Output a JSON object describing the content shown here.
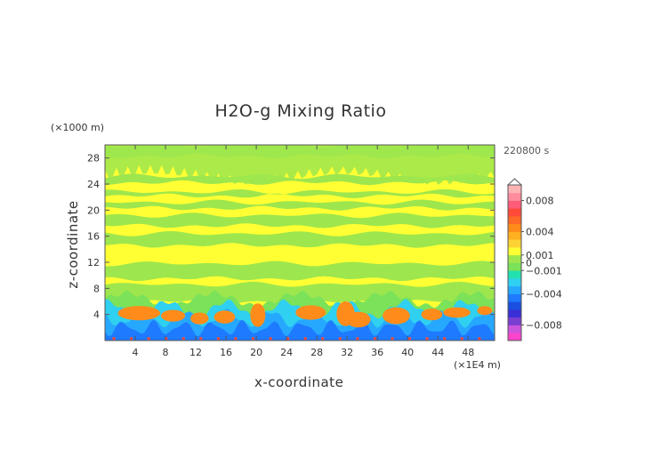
{
  "chart_data": {
    "type": "heatmap",
    "title": "H2O-g Mixing Ratio",
    "xlabel": "x-coordinate",
    "ylabel": "z-coordinate",
    "x_unit": "(×1E4 m)",
    "y_unit": "(×1000 m)",
    "time_label": "220800 s",
    "xlim": [
      0,
      51.5
    ],
    "ylim": [
      0,
      30
    ],
    "x_ticks": [
      "4",
      "8",
      "12",
      "16",
      "20",
      "24",
      "28",
      "32",
      "36",
      "40",
      "44",
      "48"
    ],
    "y_ticks": [
      "4",
      "8",
      "12",
      "16",
      "20",
      "24",
      "28"
    ],
    "x_tick_values": [
      4,
      8,
      12,
      16,
      20,
      24,
      28,
      32,
      36,
      40,
      44,
      48
    ],
    "y_tick_values": [
      4,
      8,
      12,
      16,
      20,
      24,
      28
    ],
    "colorbar": {
      "min": -0.01,
      "max": 0.01,
      "labels": [
        "0.008",
        "0.004",
        "0.001",
        "0",
        "−0.001",
        "−0.004",
        "−0.008"
      ],
      "label_values": [
        0.008,
        0.004,
        0.001,
        0,
        -0.001,
        -0.004,
        -0.008
      ],
      "colors": [
        "#ff44cc",
        "#cc55dd",
        "#7a3fd0",
        "#3a2fd6",
        "#1a4fe0",
        "#1e7aff",
        "#26a8ff",
        "#2fd0f0",
        "#22e0b0",
        "#7be25a",
        "#9ee64d",
        "#ffff33",
        "#ffd233",
        "#ffb020",
        "#ff8c1a",
        "#ff6a28",
        "#ff4a3a",
        "#ff5c78",
        "#ff8c9c",
        "#ffb4b4"
      ]
    },
    "field_colors": {
      "background": "#ffff33",
      "pale_green": "#9ee64d",
      "green": "#7be25a",
      "cyan": "#2fd0f0",
      "light_blue": "#26a8ff",
      "blue": "#1e7aff",
      "orange": "#ff8c1a",
      "red": "#ff4a3a"
    }
  }
}
